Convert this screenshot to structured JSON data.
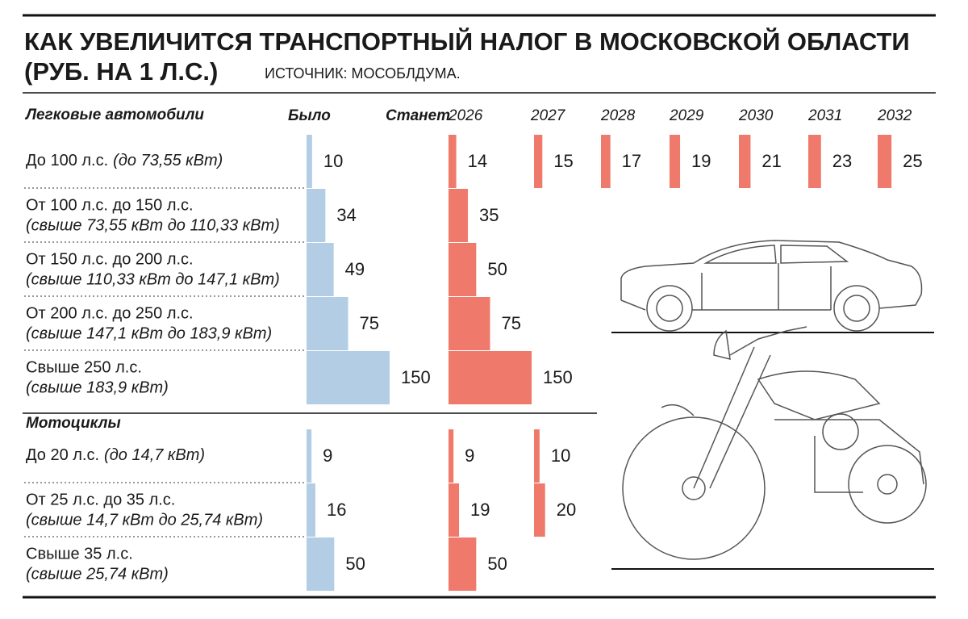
{
  "chart_data": {
    "type": "bar",
    "title": [
      "КАК УВЕЛИЧИТСЯ ТРАНСПОРТНЫЙ НАЛОГ В МОСКОВСКОЙ ОБЛАСТИ",
      "(РУБ. НА 1 Л.С.)"
    ],
    "source": "ИСТОЧНИК: МОСОБЛДУМА.",
    "future_label": "Станет",
    "groups": [
      {
        "name": "Легковые автомобили",
        "categories": [
          {
            "label": "До 100 л.с.",
            "sublabel": "(до 73,55 кВт)"
          },
          {
            "label": "От 100 л.с. до 150 л.с.",
            "sublabel": "(свыше 73,55 кВт до 110,33 кВт)"
          },
          {
            "label": "От 150 л.с. до 200 л.с.",
            "sublabel": "(свыше 110,33 кВт до 147,1 кВт)"
          },
          {
            "label": "От 200 л.с. до 250 л.с.",
            "sublabel": "(свыше 147,1 кВт до 183,9 кВт)"
          },
          {
            "label": "Свыше 250 л.с.",
            "sublabel": "(свыше 183,9 кВт)"
          }
        ]
      },
      {
        "name": "Мотоциклы",
        "categories": [
          {
            "label": "До 20 л.с.",
            "sublabel": "(до 14,7 кВт)"
          },
          {
            "label": "От 25 л.с. до 35 л.с.",
            "sublabel": "(свыше 14,7 кВт до 25,74 кВт)"
          },
          {
            "label": "Свыше 35 л.с.",
            "sublabel": "(свыше 25,74 кВт)"
          }
        ]
      }
    ],
    "series": [
      {
        "name": "Было",
        "color": "#b3cde4",
        "values": [
          10,
          34,
          49,
          75,
          150,
          9,
          16,
          50
        ]
      },
      {
        "name": "2026",
        "color": "#ef7a6b",
        "values": [
          14,
          35,
          50,
          75,
          150,
          9,
          19,
          50
        ]
      },
      {
        "name": "2027",
        "color": "#ef7a6b",
        "values": [
          15,
          null,
          null,
          null,
          null,
          10,
          20,
          null
        ]
      },
      {
        "name": "2028",
        "color": "#ef7a6b",
        "values": [
          17,
          null,
          null,
          null,
          null,
          null,
          null,
          null
        ]
      },
      {
        "name": "2029",
        "color": "#ef7a6b",
        "values": [
          19,
          null,
          null,
          null,
          null,
          null,
          null,
          null
        ]
      },
      {
        "name": "2030",
        "color": "#ef7a6b",
        "values": [
          21,
          null,
          null,
          null,
          null,
          null,
          null,
          null
        ]
      },
      {
        "name": "2031",
        "color": "#ef7a6b",
        "values": [
          23,
          null,
          null,
          null,
          null,
          null,
          null,
          null
        ]
      },
      {
        "name": "2032",
        "color": "#ef7a6b",
        "values": [
          25,
          null,
          null,
          null,
          null,
          null,
          null,
          null
        ]
      }
    ]
  }
}
